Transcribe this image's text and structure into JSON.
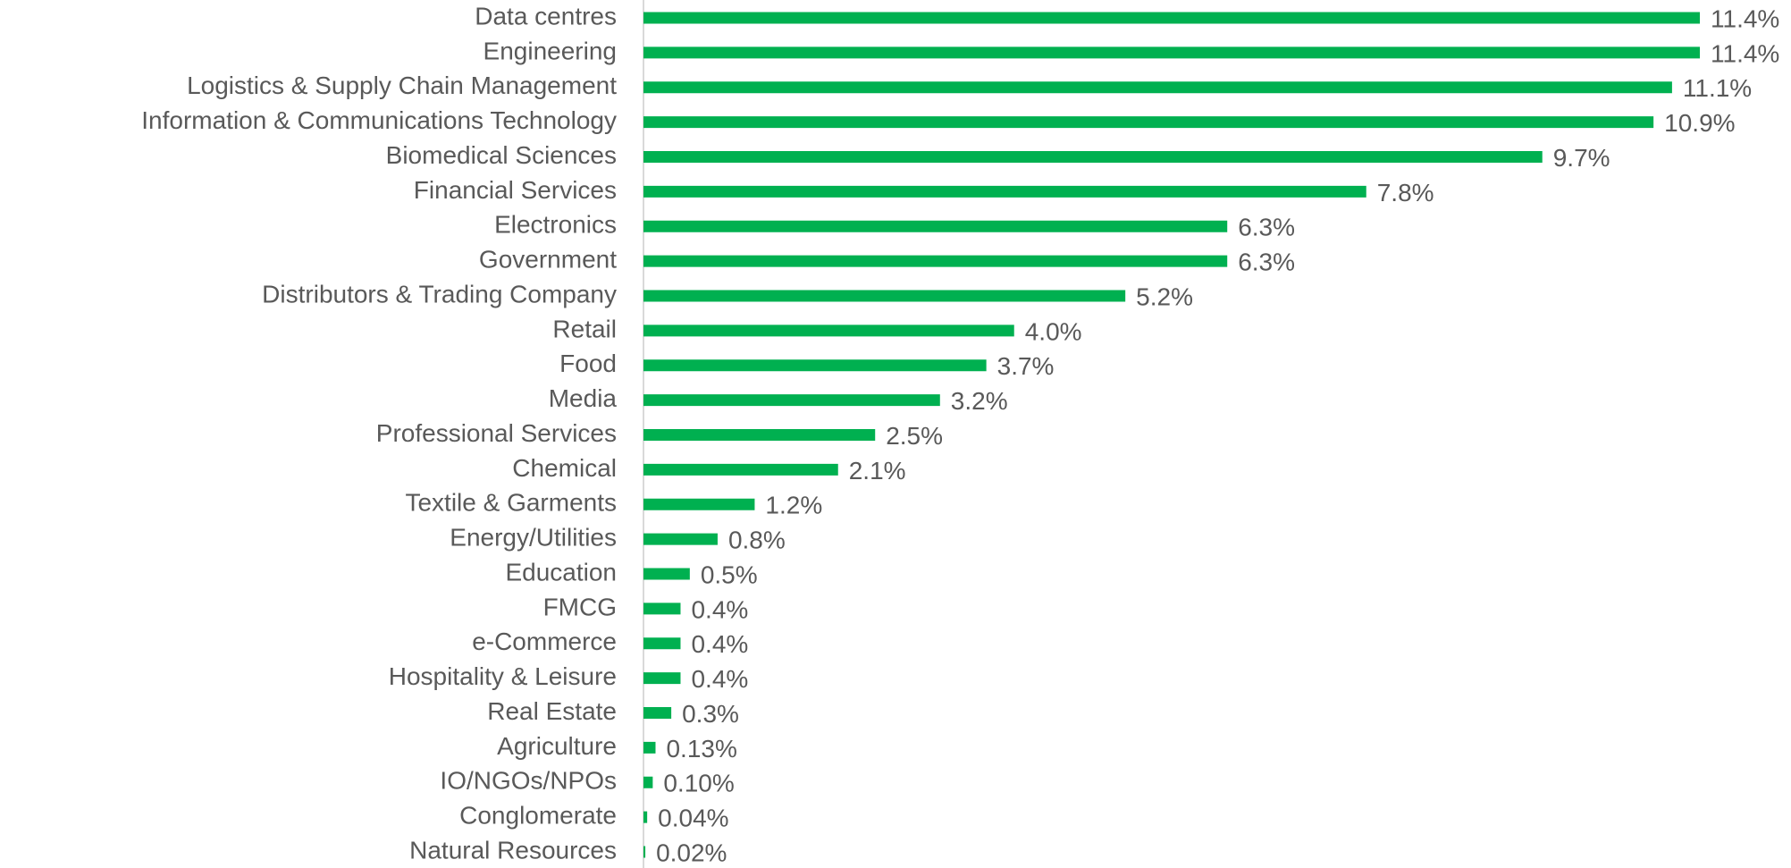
{
  "chart_data": {
    "type": "bar",
    "orientation": "horizontal",
    "categories": [
      "Data centres",
      "Engineering",
      "Logistics & Supply Chain Management",
      "Information & Communications Technology",
      "Biomedical Sciences",
      "Financial Services",
      "Electronics",
      "Government",
      "Distributors & Trading Company",
      "Retail",
      "Food",
      "Media",
      "Professional Services",
      "Chemical",
      "Textile & Garments",
      "Energy/Utilities",
      "Education",
      "FMCG",
      "e-Commerce",
      "Hospitality & Leisure",
      "Real Estate",
      "Agriculture",
      "IO/NGOs/NPOs",
      "Conglomerate",
      "Natural Resources"
    ],
    "values": [
      11.4,
      11.4,
      11.1,
      10.9,
      9.7,
      7.8,
      6.3,
      6.3,
      5.2,
      4.0,
      3.7,
      3.2,
      2.5,
      2.1,
      1.2,
      0.8,
      0.5,
      0.4,
      0.4,
      0.4,
      0.3,
      0.13,
      0.1,
      0.04,
      0.02
    ],
    "value_labels": [
      "11.4%",
      "11.4%",
      "11.1%",
      "10.9%",
      "9.7%",
      "7.8%",
      "6.3%",
      "6.3%",
      "5.2%",
      "4.0%",
      "3.7%",
      "3.2%",
      "2.5%",
      "2.1%",
      "1.2%",
      "0.8%",
      "0.5%",
      "0.4%",
      "0.4%",
      "0.4%",
      "0.3%",
      "0.13%",
      "0.10%",
      "0.04%",
      "0.02%"
    ],
    "color": "#00b050"
  }
}
